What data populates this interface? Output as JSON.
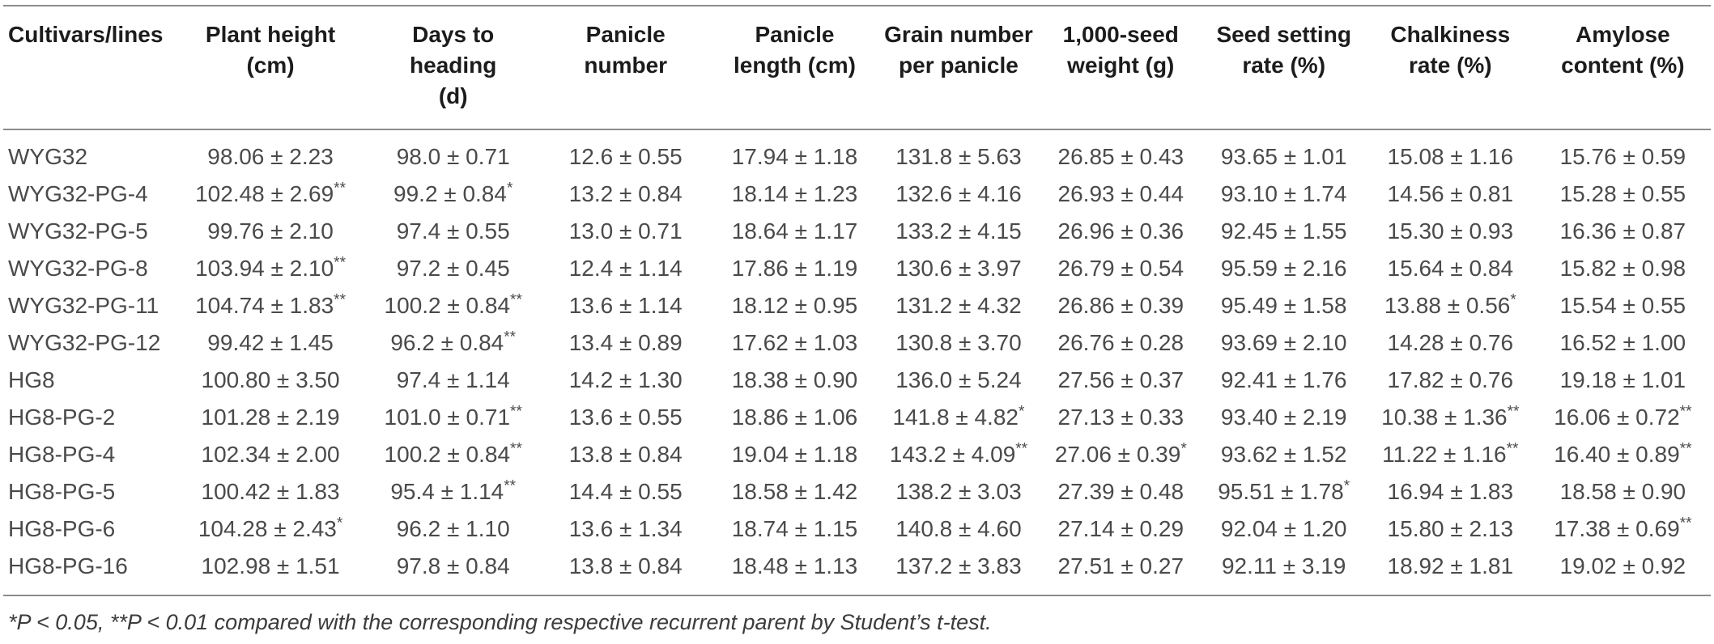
{
  "table": {
    "columns": [
      "Cultivars/lines",
      "Plant height\n(cm)",
      "Days to\nheading\n(d)",
      "Panicle\nnumber",
      "Panicle\nlength (cm)",
      "Grain number\nper panicle",
      "1,000-seed\nweight (g)",
      "Seed setting\nrate (%)",
      "Chalkiness\nrate (%)",
      "Amylose\ncontent (%)"
    ],
    "rows": [
      [
        "WYG32",
        "98.06 ± 2.23",
        "98.0 ± 0.71",
        "12.6 ± 0.55",
        "17.94 ± 1.18",
        "131.8 ± 5.63",
        "26.85 ± 0.43",
        "93.65 ± 1.01",
        "15.08 ± 1.16",
        "15.76 ± 0.59"
      ],
      [
        "WYG32-PG-4",
        "102.48 ± 2.69**",
        "99.2 ± 0.84*",
        "13.2 ± 0.84",
        "18.14 ± 1.23",
        "132.6 ± 4.16",
        "26.93 ± 0.44",
        "93.10 ± 1.74",
        "14.56 ± 0.81",
        "15.28 ± 0.55"
      ],
      [
        "WYG32-PG-5",
        "99.76 ± 2.10",
        "97.4 ± 0.55",
        "13.0 ± 0.71",
        "18.64 ± 1.17",
        "133.2 ± 4.15",
        "26.96 ± 0.36",
        "92.45 ± 1.55",
        "15.30 ± 0.93",
        "16.36 ± 0.87"
      ],
      [
        "WYG32-PG-8",
        "103.94 ± 2.10**",
        "97.2 ± 0.45",
        "12.4 ± 1.14",
        "17.86 ± 1.19",
        "130.6 ± 3.97",
        "26.79 ± 0.54",
        "95.59 ± 2.16",
        "15.64 ± 0.84",
        "15.82 ± 0.98"
      ],
      [
        "WYG32-PG-11",
        "104.74 ± 1.83**",
        "100.2 ± 0.84**",
        "13.6 ± 1.14",
        "18.12 ± 0.95",
        "131.2 ± 4.32",
        "26.86 ± 0.39",
        "95.49 ± 1.58",
        "13.88 ± 0.56*",
        "15.54 ± 0.55"
      ],
      [
        "WYG32-PG-12",
        "99.42 ± 1.45",
        "96.2 ± 0.84**",
        "13.4 ± 0.89",
        "17.62 ± 1.03",
        "130.8 ± 3.70",
        "26.76 ± 0.28",
        "93.69 ± 2.10",
        "14.28 ± 0.76",
        "16.52 ± 1.00"
      ],
      [
        "HG8",
        "100.80 ± 3.50",
        "97.4 ± 1.14",
        "14.2 ± 1.30",
        "18.38 ± 0.90",
        "136.0 ± 5.24",
        "27.56 ± 0.37",
        "92.41 ± 1.76",
        "17.82 ± 0.76",
        "19.18 ± 1.01"
      ],
      [
        "HG8-PG-2",
        "101.28 ± 2.19",
        "101.0 ± 0.71**",
        "13.6 ± 0.55",
        "18.86 ± 1.06",
        "141.8 ± 4.82*",
        "27.13 ± 0.33",
        "93.40 ± 2.19",
        "10.38 ± 1.36**",
        "16.06 ± 0.72**"
      ],
      [
        "HG8-PG-4",
        "102.34 ± 2.00",
        "100.2 ± 0.84**",
        "13.8 ± 0.84",
        "19.04 ± 1.18",
        "143.2 ± 4.09**",
        "27.06 ± 0.39*",
        "93.62 ± 1.52",
        "11.22 ± 1.16**",
        "16.40 ± 0.89**"
      ],
      [
        "HG8-PG-5",
        "100.42 ± 1.83",
        "95.4 ± 1.14**",
        "14.4 ± 0.55",
        "18.58 ± 1.42",
        "138.2 ± 3.03",
        "27.39 ± 0.48",
        "95.51 ± 1.78*",
        "16.94 ± 1.83",
        "18.58 ± 0.90"
      ],
      [
        "HG8-PG-6",
        "104.28 ± 2.43*",
        "96.2 ± 1.10",
        "13.6 ± 1.34",
        "18.74 ± 1.15",
        "140.8 ± 4.60",
        "27.14 ± 0.29",
        "92.04 ± 1.20",
        "15.80 ± 2.13",
        "17.38 ± 0.69**"
      ],
      [
        "HG8-PG-16",
        "102.98 ± 1.51",
        "97.8 ± 0.84",
        "13.8 ± 0.84",
        "18.48 ± 1.13",
        "137.2 ± 3.83",
        "27.51 ± 0.27",
        "92.11 ± 3.19",
        "18.92 ± 1.81",
        "19.02 ± 0.92"
      ]
    ]
  },
  "footnote": "*P < 0.05, **P < 0.01 compared with the corresponding respective recurrent parent by Student’s t-test.",
  "colors": {
    "rule": "#8c8c8c",
    "header_text": "#1c1c1c",
    "body_text": "#4a4a4a",
    "footnote_text": "#3c3c3c",
    "background": "#ffffff"
  }
}
